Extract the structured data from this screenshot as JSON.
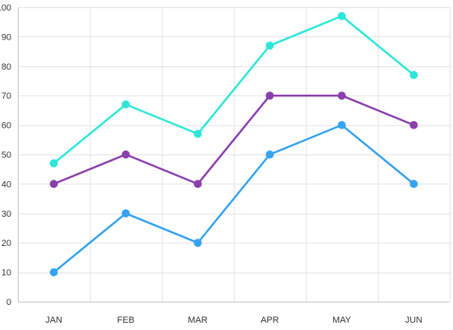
{
  "chart_data": {
    "type": "line",
    "categories": [
      "JAN",
      "FEB",
      "MAR",
      "APR",
      "MAY",
      "JUN"
    ],
    "y_ticks": [
      "0",
      "10",
      "20",
      "30",
      "40",
      "50",
      "60",
      "70",
      "80",
      "90",
      "100"
    ],
    "ylim": [
      0,
      100
    ],
    "grid": true,
    "legend": "none",
    "series": [
      {
        "color": "#2ee6d6",
        "values": [
          47,
          67,
          57,
          87,
          97,
          77
        ]
      },
      {
        "color": "#8a3fad",
        "values": [
          40,
          50,
          40,
          70,
          70,
          60
        ]
      },
      {
        "color": "#36a2f0",
        "values": [
          10,
          30,
          20,
          50,
          60,
          40
        ]
      }
    ]
  }
}
